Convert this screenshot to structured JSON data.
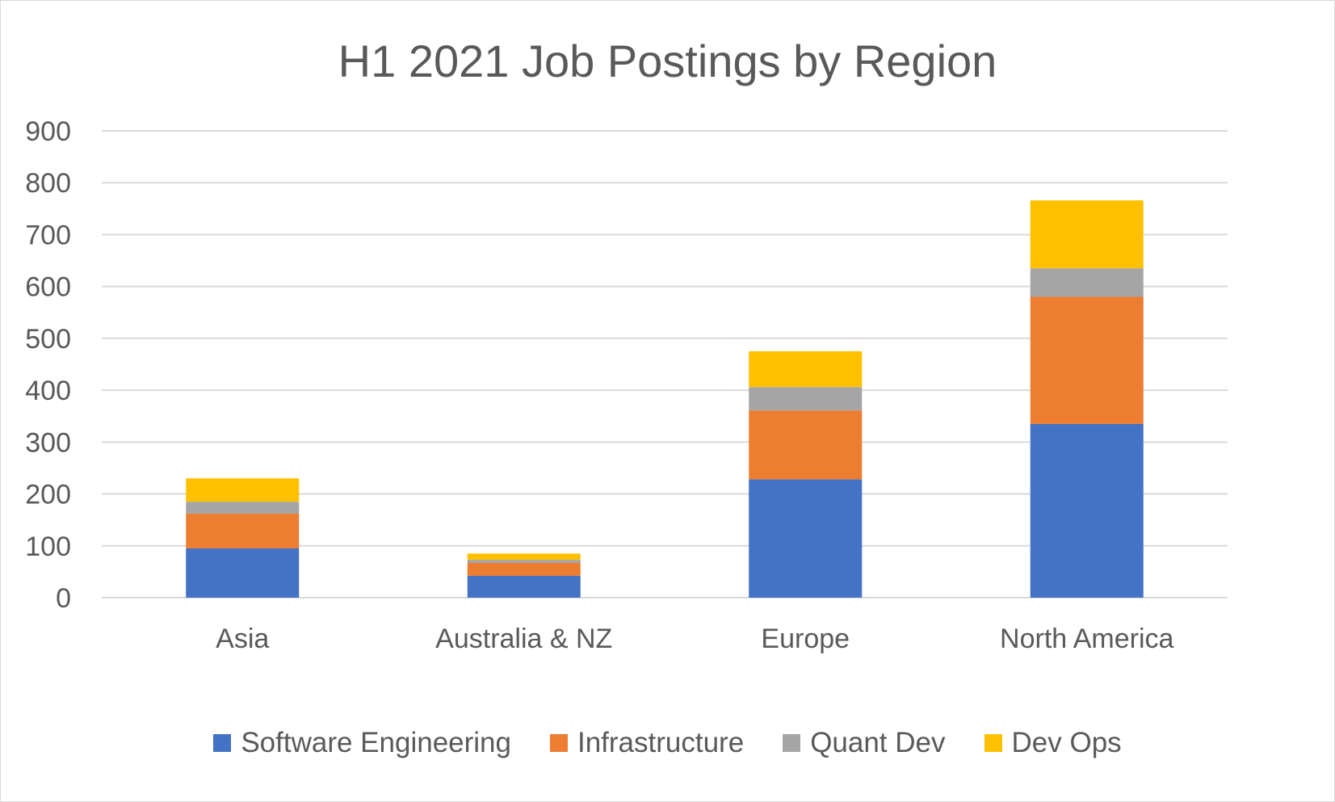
{
  "chart_data": {
    "type": "bar",
    "stacked": true,
    "title": "H1 2021 Job Postings by Region",
    "categories": [
      "Asia",
      "Australia & NZ",
      "Europe",
      "North America"
    ],
    "series": [
      {
        "name": "Software Engineering",
        "color": "#4472C4",
        "values": [
          95,
          42,
          228,
          335
        ]
      },
      {
        "name": "Infrastructure",
        "color": "#ED7D31",
        "values": [
          67,
          25,
          133,
          245
        ]
      },
      {
        "name": "Quant Dev",
        "color": "#A5A5A5",
        "values": [
          23,
          6,
          45,
          55
        ]
      },
      {
        "name": "Dev Ops",
        "color": "#FFC000",
        "values": [
          45,
          12,
          69,
          131
        ]
      }
    ],
    "ylim": [
      0,
      900
    ],
    "yticks": [
      "0",
      "100",
      "200",
      "300",
      "400",
      "500",
      "600",
      "700",
      "800",
      "900"
    ],
    "grid": true,
    "legend_position": "bottom"
  }
}
